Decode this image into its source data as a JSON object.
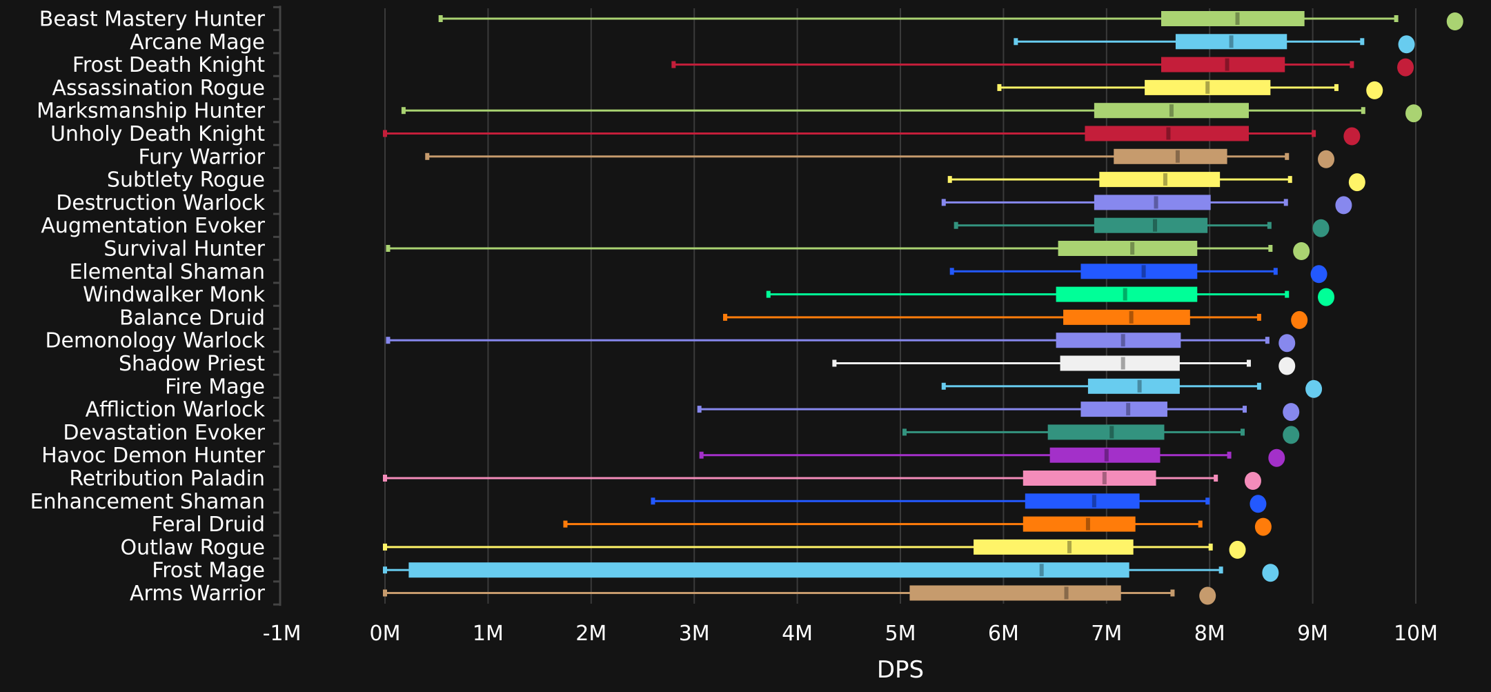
{
  "chart_data": {
    "type": "boxplot",
    "title": "",
    "xlabel": "DPS",
    "ylabel": "",
    "xlim": [
      -1000000,
      10500000
    ],
    "x_ticks": [
      "-1M",
      "0M",
      "1M",
      "2M",
      "3M",
      "4M",
      "5M",
      "6M",
      "7M",
      "8M",
      "9M",
      "10M"
    ],
    "x_tick_values": [
      -1,
      0,
      1,
      2,
      3,
      4,
      5,
      6,
      7,
      8,
      9,
      10
    ],
    "units": "millions DPS",
    "grid": "vertical",
    "legend": "none",
    "series": [
      {
        "name": "Beast Mastery Hunter",
        "color": "#aad372",
        "min": 0.54,
        "q1": 7.53,
        "median": 8.27,
        "q3": 8.92,
        "max": 9.81,
        "outlier": 10.38
      },
      {
        "name": "Arcane Mage",
        "color": "#68ccef",
        "min": 6.12,
        "q1": 7.67,
        "median": 8.21,
        "q3": 8.75,
        "max": 9.48,
        "outlier": 9.91
      },
      {
        "name": "Frost Death Knight",
        "color": "#c41e3a",
        "min": 2.8,
        "q1": 7.53,
        "median": 8.17,
        "q3": 8.73,
        "max": 9.38,
        "outlier": 9.9
      },
      {
        "name": "Assassination Rogue",
        "color": "#fff468",
        "min": 5.96,
        "q1": 7.37,
        "median": 7.98,
        "q3": 8.59,
        "max": 9.23,
        "outlier": 9.6
      },
      {
        "name": "Marksmanship Hunter",
        "color": "#aad372",
        "min": 0.18,
        "q1": 6.88,
        "median": 7.63,
        "q3": 8.38,
        "max": 9.49,
        "outlier": 9.98
      },
      {
        "name": "Unholy Death Knight",
        "color": "#c41e3a",
        "min": 0.0,
        "q1": 6.79,
        "median": 7.6,
        "q3": 8.38,
        "max": 9.01,
        "outlier": 9.38
      },
      {
        "name": "Fury Warrior",
        "color": "#c69b6d",
        "min": 0.41,
        "q1": 7.07,
        "median": 7.69,
        "q3": 8.17,
        "max": 8.75,
        "outlier": 9.13
      },
      {
        "name": "Subtlety Rogue",
        "color": "#fff468",
        "min": 5.48,
        "q1": 6.93,
        "median": 7.57,
        "q3": 8.1,
        "max": 8.78,
        "outlier": 9.43
      },
      {
        "name": "Destruction Warlock",
        "color": "#8788ee",
        "min": 5.42,
        "q1": 6.88,
        "median": 7.48,
        "q3": 8.01,
        "max": 8.74,
        "outlier": 9.3
      },
      {
        "name": "Augmentation Evoker",
        "color": "#33937f",
        "min": 5.54,
        "q1": 6.88,
        "median": 7.47,
        "q3": 7.98,
        "max": 8.58,
        "outlier": 9.08
      },
      {
        "name": "Survival Hunter",
        "color": "#aad372",
        "min": 0.03,
        "q1": 6.53,
        "median": 7.25,
        "q3": 7.88,
        "max": 8.59,
        "outlier": 8.89
      },
      {
        "name": "Elemental Shaman",
        "color": "#2359ff",
        "min": 5.5,
        "q1": 6.75,
        "median": 7.36,
        "q3": 7.88,
        "max": 8.64,
        "outlier": 9.06
      },
      {
        "name": "Windwalker Monk",
        "color": "#00ff98",
        "min": 3.72,
        "q1": 6.51,
        "median": 7.18,
        "q3": 7.88,
        "max": 8.75,
        "outlier": 9.13
      },
      {
        "name": "Balance Druid",
        "color": "#ff7c0a",
        "min": 3.3,
        "q1": 6.58,
        "median": 7.24,
        "q3": 7.81,
        "max": 8.48,
        "outlier": 8.87
      },
      {
        "name": "Demonology Warlock",
        "color": "#8788ee",
        "min": 0.03,
        "q1": 6.51,
        "median": 7.16,
        "q3": 7.72,
        "max": 8.56,
        "outlier": 8.75
      },
      {
        "name": "Shadow Priest",
        "color": "#f0f0f0",
        "min": 4.36,
        "q1": 6.55,
        "median": 7.16,
        "q3": 7.71,
        "max": 8.38,
        "outlier": 8.75
      },
      {
        "name": "Fire Mage",
        "color": "#68ccef",
        "min": 5.42,
        "q1": 6.82,
        "median": 7.32,
        "q3": 7.71,
        "max": 8.48,
        "outlier": 9.01
      },
      {
        "name": "Affliction Warlock",
        "color": "#8788ee",
        "min": 3.05,
        "q1": 6.75,
        "median": 7.21,
        "q3": 7.59,
        "max": 8.34,
        "outlier": 8.79
      },
      {
        "name": "Devastation Evoker",
        "color": "#33937f",
        "min": 5.04,
        "q1": 6.43,
        "median": 7.05,
        "q3": 7.56,
        "max": 8.32,
        "outlier": 8.79
      },
      {
        "name": "Havoc Demon Hunter",
        "color": "#a330c9",
        "min": 3.07,
        "q1": 6.45,
        "median": 7.0,
        "q3": 7.52,
        "max": 8.19,
        "outlier": 8.65
      },
      {
        "name": "Retribution Paladin",
        "color": "#f48cba",
        "min": 0.0,
        "q1": 6.19,
        "median": 6.98,
        "q3": 7.48,
        "max": 8.06,
        "outlier": 8.42
      },
      {
        "name": "Enhancement Shaman",
        "color": "#2359ff",
        "min": 2.6,
        "q1": 6.21,
        "median": 6.88,
        "q3": 7.32,
        "max": 7.98,
        "outlier": 8.47
      },
      {
        "name": "Feral Druid",
        "color": "#ff7c0a",
        "min": 1.75,
        "q1": 6.19,
        "median": 6.82,
        "q3": 7.28,
        "max": 7.91,
        "outlier": 8.52
      },
      {
        "name": "Outlaw Rogue",
        "color": "#fff468",
        "min": 0.0,
        "q1": 5.71,
        "median": 6.64,
        "q3": 7.26,
        "max": 8.01,
        "outlier": 8.27
      },
      {
        "name": "Frost Mage",
        "color": "#68ccef",
        "min": 0.0,
        "q1": 0.23,
        "median": 6.37,
        "q3": 7.22,
        "max": 8.11,
        "outlier": 8.59
      },
      {
        "name": "Arms Warrior",
        "color": "#c69b6d",
        "min": 0.0,
        "q1": 5.09,
        "median": 6.61,
        "q3": 7.14,
        "max": 7.64,
        "outlier": 7.98
      }
    ]
  }
}
